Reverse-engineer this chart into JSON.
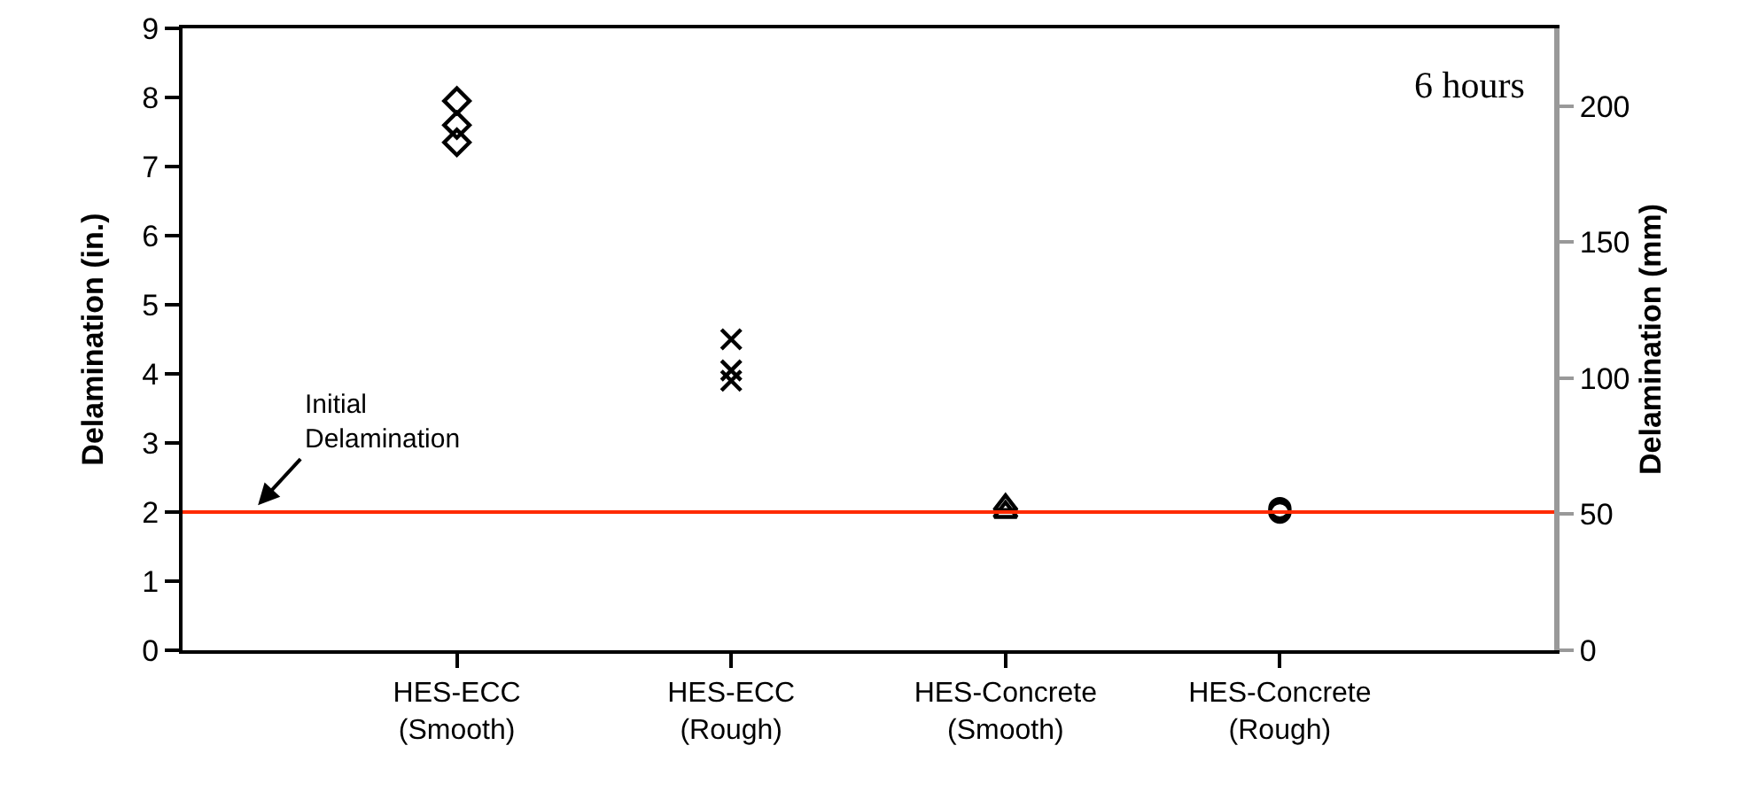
{
  "chart_data": {
    "type": "scatter",
    "categories": [
      "HES-ECC\n(Smooth)",
      "HES-ECC\n(Rough)",
      "HES-Concrete\n(Smooth)",
      "HES-Concrete\n(Rough)"
    ],
    "series": [
      {
        "marker": "diamond",
        "color": "#000000",
        "x": [
          "HES-ECC\n(Smooth)",
          "HES-ECC\n(Smooth)",
          "HES-ECC\n(Smooth)"
        ],
        "values": [
          7.95,
          7.6,
          7.35
        ]
      },
      {
        "marker": "cross",
        "color": "#000000",
        "x": [
          "HES-ECC\n(Rough)",
          "HES-ECC\n(Rough)",
          "HES-ECC\n(Rough)"
        ],
        "values": [
          4.5,
          4.05,
          3.9
        ]
      },
      {
        "marker": "triangle",
        "color": "#000000",
        "x": [
          "HES-Concrete\n(Smooth)",
          "HES-Concrete\n(Smooth)"
        ],
        "values": [
          2.0,
          2.1
        ]
      },
      {
        "marker": "circle",
        "color": "#000000",
        "x": [
          "HES-Concrete\n(Rough)",
          "HES-Concrete\n(Rough)"
        ],
        "values": [
          2.0,
          2.05
        ]
      }
    ],
    "ylabel": "Delamination (in.)",
    "y2label": "Delamination (mm)",
    "ylim": [
      0,
      9
    ],
    "yticks": [
      0,
      1,
      2,
      3,
      4,
      5,
      6,
      7,
      8,
      9
    ],
    "y2lim": [
      0,
      228.6
    ],
    "y2ticks": [
      0,
      50,
      100,
      150,
      200
    ],
    "ref_lines": [
      {
        "axis": "y",
        "value": 2,
        "color": "#ff2a00"
      }
    ],
    "annotations": [
      {
        "text": "Initial\nDelamination",
        "y": 2.1
      },
      "6 hours"
    ],
    "grid": false
  }
}
